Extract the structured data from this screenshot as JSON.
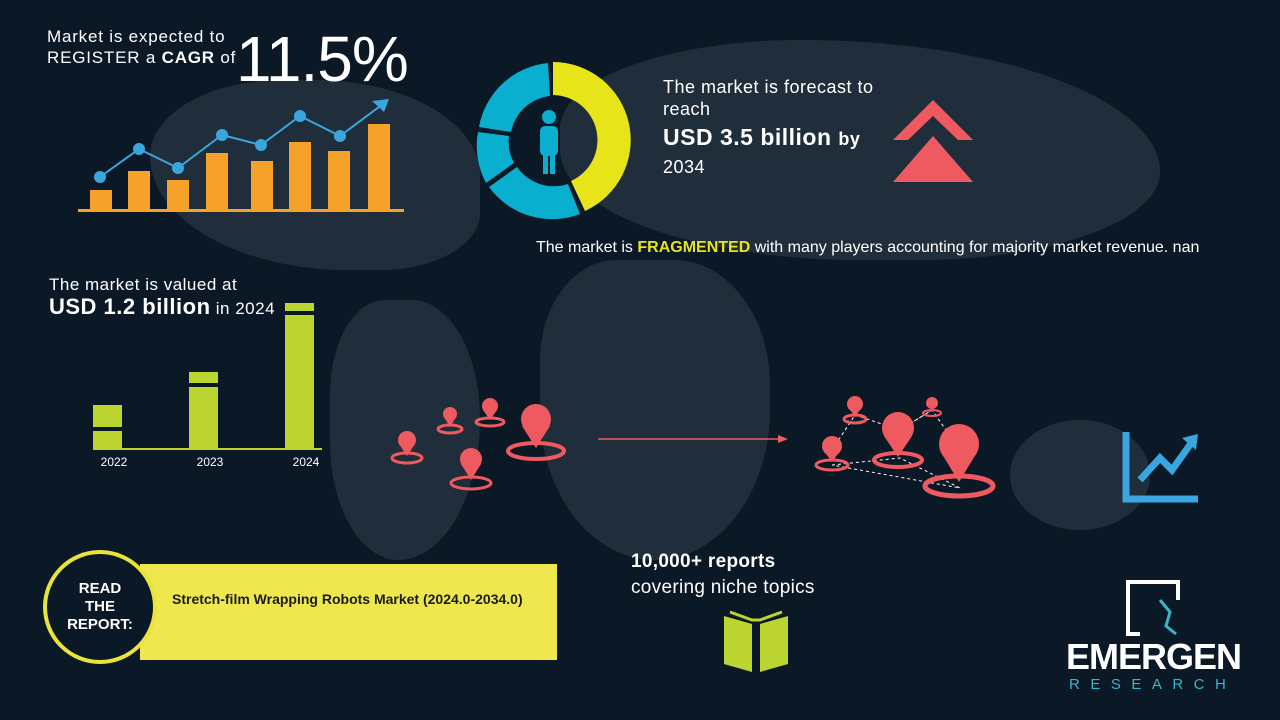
{
  "cagr": {
    "line1": "Market is expected to",
    "line2_pre": "REGISTER a",
    "line2_bold": "CAGR",
    "line2_post": "of",
    "value": "11.5%"
  },
  "forecast": {
    "line1": "The market is forecast to",
    "line2": "reach",
    "value": "USD 3.5 billion",
    "by": "by",
    "year": "2034"
  },
  "fragmented": {
    "pre": "The market is",
    "bold": "FRAGMENTED",
    "post": "with many players accounting for majority market revenue. nan"
  },
  "valued": {
    "line1": "The market is valued at",
    "value": "USD 1.2 billion",
    "post": "in 2024"
  },
  "chart_data": {
    "type": "bar",
    "categories": [
      "2022",
      "2023",
      "2024"
    ],
    "values": [
      1.0,
      1.6,
      3.2
    ],
    "title": "",
    "xlabel": "",
    "ylabel": ""
  },
  "reports": {
    "line1": "10,000+ reports",
    "line2": "covering niche topics"
  },
  "read_report": {
    "label_lines": [
      "READ",
      "THE",
      "REPORT:"
    ],
    "title": "Stretch-film Wrapping Robots Market (2024.0-2034.0)"
  },
  "logo": {
    "name": "EMERGEN",
    "sub": "RESEARCH"
  },
  "colors": {
    "background": "#0b1826",
    "orange": "#f6a12a",
    "blue": "#3aa6de",
    "yellow": "#e8e41a",
    "green": "#bcd531",
    "red": "#ee5a5f",
    "teal": "#0aafcf"
  }
}
